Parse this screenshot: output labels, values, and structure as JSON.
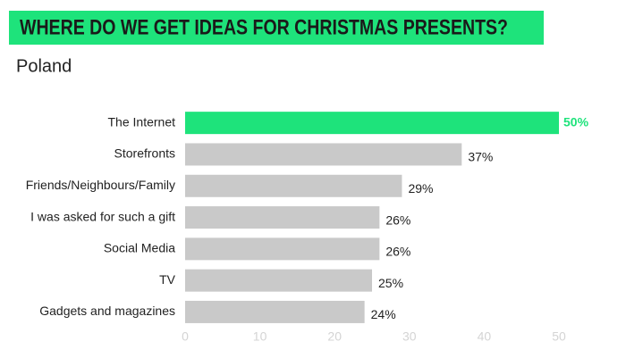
{
  "chart_data": {
    "type": "hbar",
    "title": "WHERE DO WE GET IDEAS FOR CHRISTMAS PRESENTS?",
    "subtitle": "Poland",
    "title_color": "#1ee37b",
    "categories": [
      "The Internet",
      "Storefronts",
      "Friends/Neighbours/Family",
      "I was asked for such a gift",
      "Social Media",
      "TV",
      "Gadgets and magazines"
    ],
    "values": [
      50,
      37,
      29,
      26,
      26,
      25,
      24
    ],
    "value_labels": [
      "50%",
      "37%",
      "29%",
      "26%",
      "26%",
      "25%",
      "24%"
    ],
    "colors": [
      "#1ee37b",
      "#c9c9c9",
      "#c9c9c9",
      "#c9c9c9",
      "#c9c9c9",
      "#c9c9c9",
      "#c9c9c9"
    ],
    "xlim": [
      0,
      50
    ],
    "xticks": [
      0,
      10,
      20,
      30,
      40,
      50
    ]
  }
}
